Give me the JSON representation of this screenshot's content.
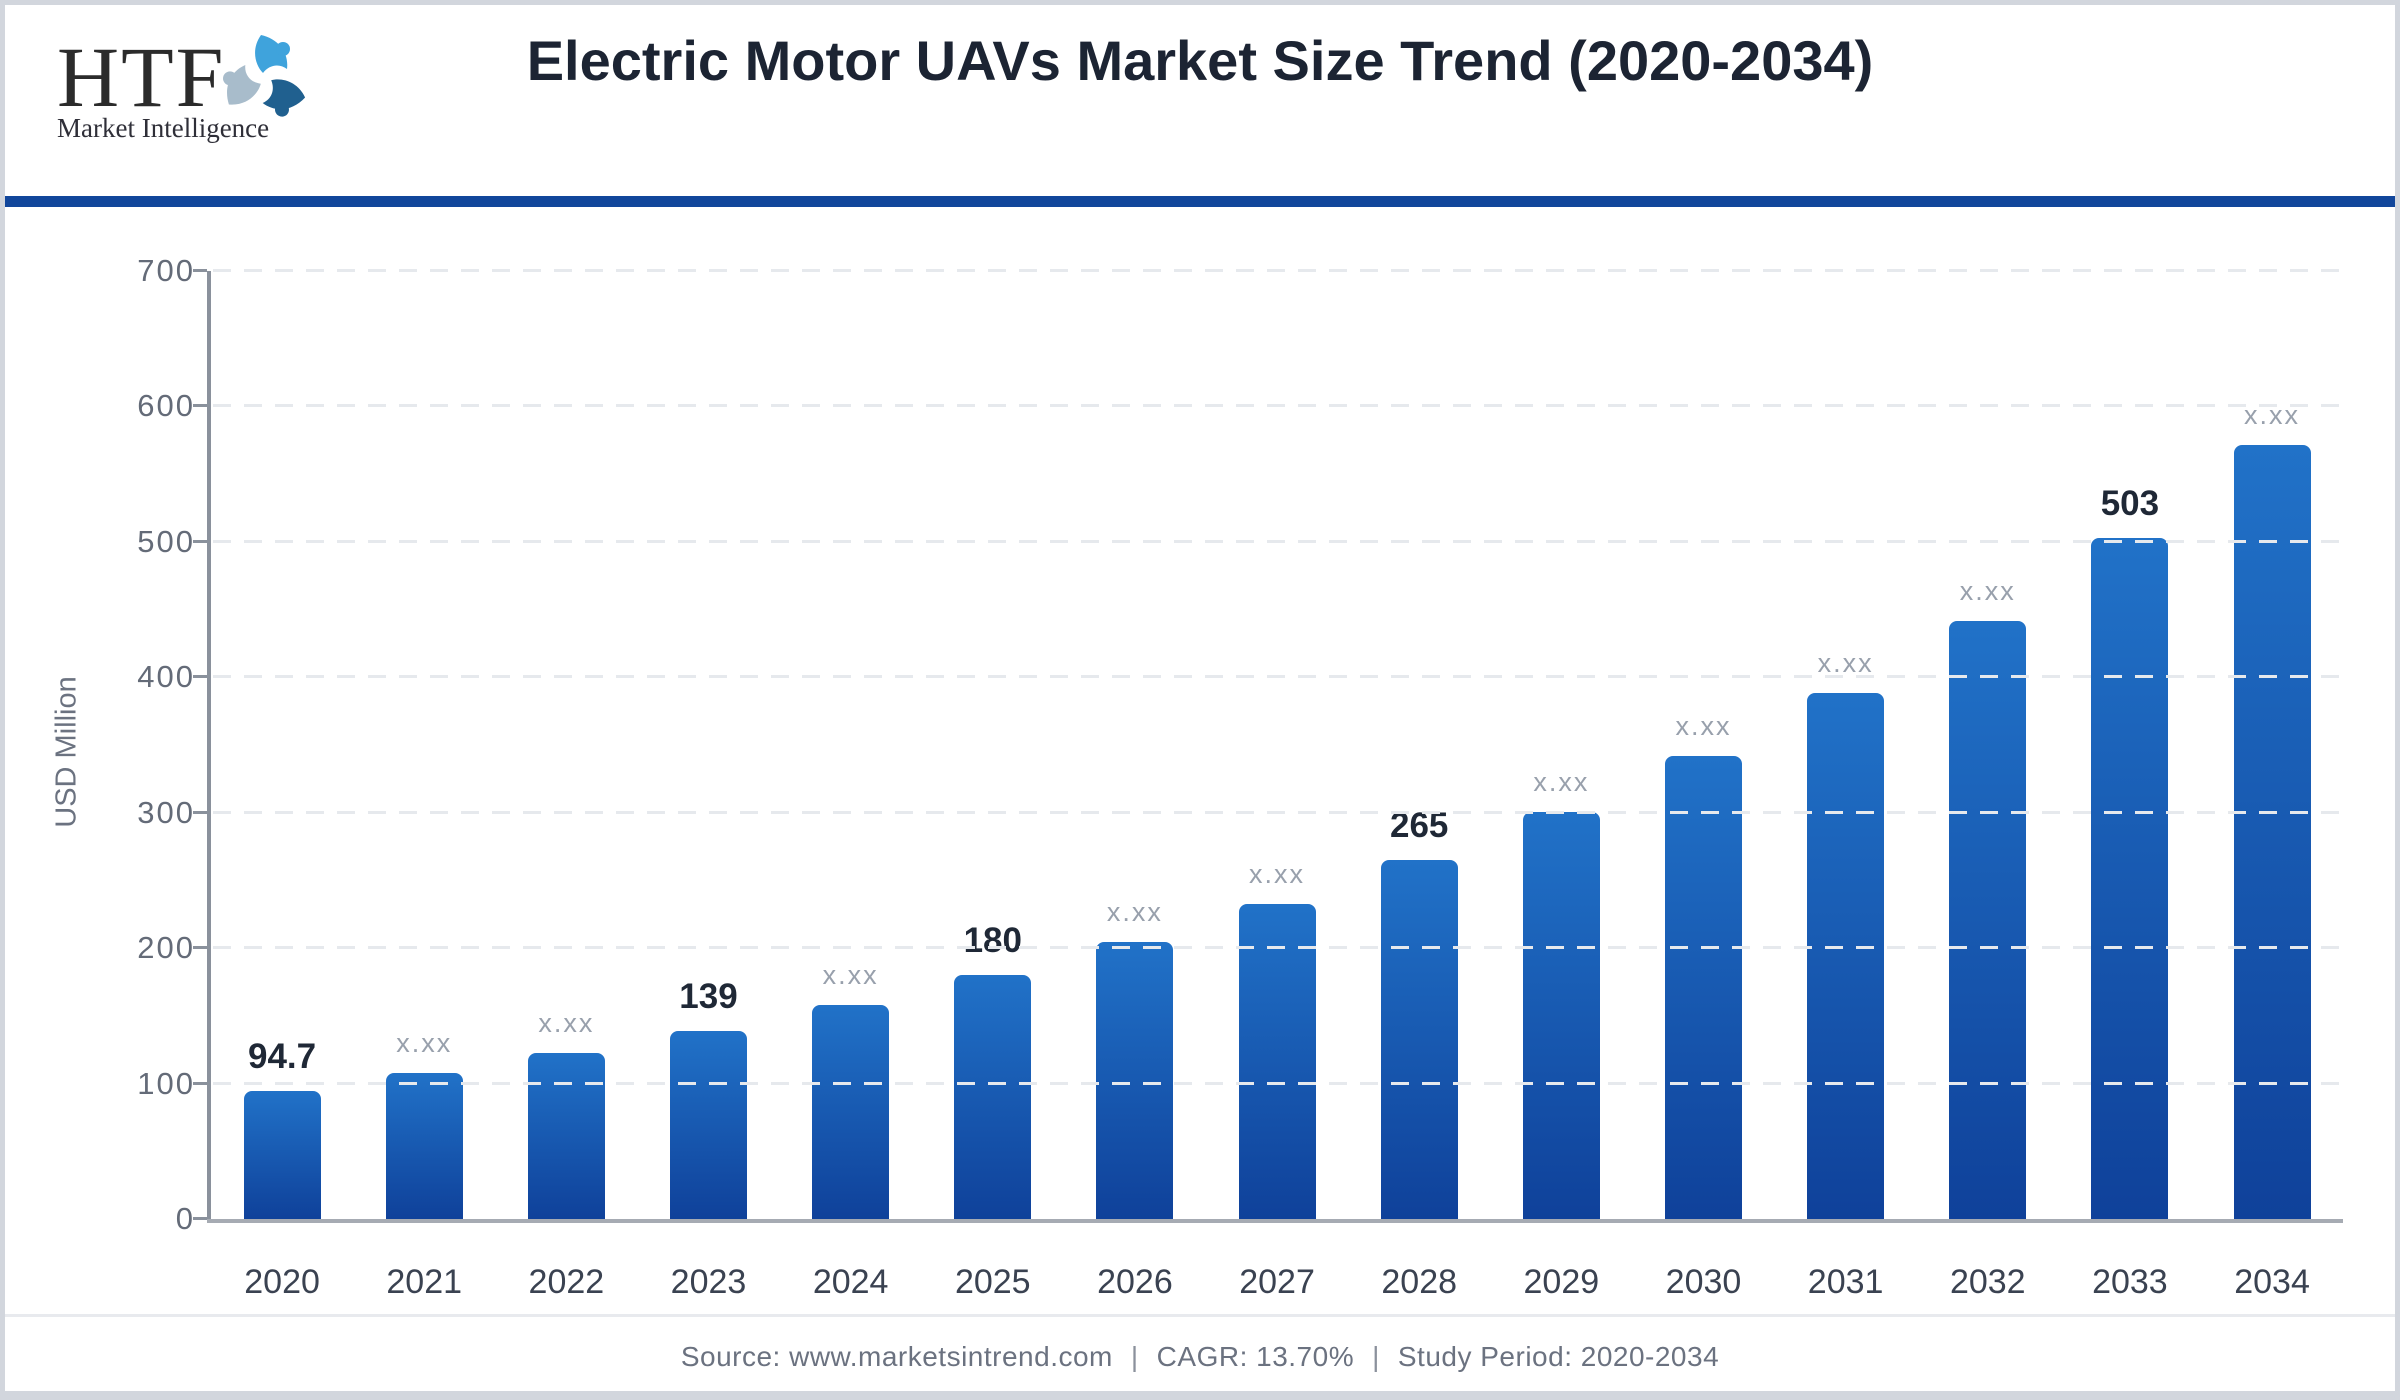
{
  "header": {
    "logo_text": "HTF",
    "logo_subtext": "Market Intelligence",
    "title": "Electric Motor UAVs Market Size Trend (2020-2034)"
  },
  "chart_data": {
    "type": "bar",
    "title": "Electric Motor UAVs Market Size Trend (2020-2034)",
    "xlabel": "",
    "ylabel": "USD Million",
    "ylim": [
      0,
      700
    ],
    "yticks": [
      0,
      100,
      200,
      300,
      400,
      500,
      600,
      700
    ],
    "grid": true,
    "legend_position": "none",
    "categories": [
      "2020",
      "2021",
      "2022",
      "2023",
      "2024",
      "2025",
      "2026",
      "2027",
      "2028",
      "2029",
      "2030",
      "2031",
      "2032",
      "2033",
      "2034"
    ],
    "values": [
      94.7,
      107.7,
      122.4,
      139,
      158.2,
      180,
      204.5,
      232.5,
      265,
      300.6,
      341.8,
      388.6,
      441.9,
      503,
      571.2
    ],
    "bar_labels": [
      "94.7",
      "x.xx",
      "x.xx",
      "139",
      "x.xx",
      "180",
      "x.xx",
      "x.xx",
      "265",
      "x.xx",
      "x.xx",
      "x.xx",
      "x.xx",
      "503",
      "x.xx"
    ]
  },
  "colors": {
    "bar_gradient_top": "#2172c8",
    "bar_gradient_bottom": "#0f419a",
    "header_divider": "#11469b",
    "logo_swirl_bright_blue": "#3fa3dc",
    "logo_swirl_gray": "#a8bccb",
    "logo_swirl_dark_blue": "#20608f",
    "value_label_strong": "#1f2836",
    "value_label_muted": "#98a0ac"
  },
  "footer": {
    "source": "Source: www.marketsintrend.com",
    "separator": "|",
    "cagr": "CAGR: 13.70%",
    "study_period": "Study Period: 2020-2034"
  }
}
